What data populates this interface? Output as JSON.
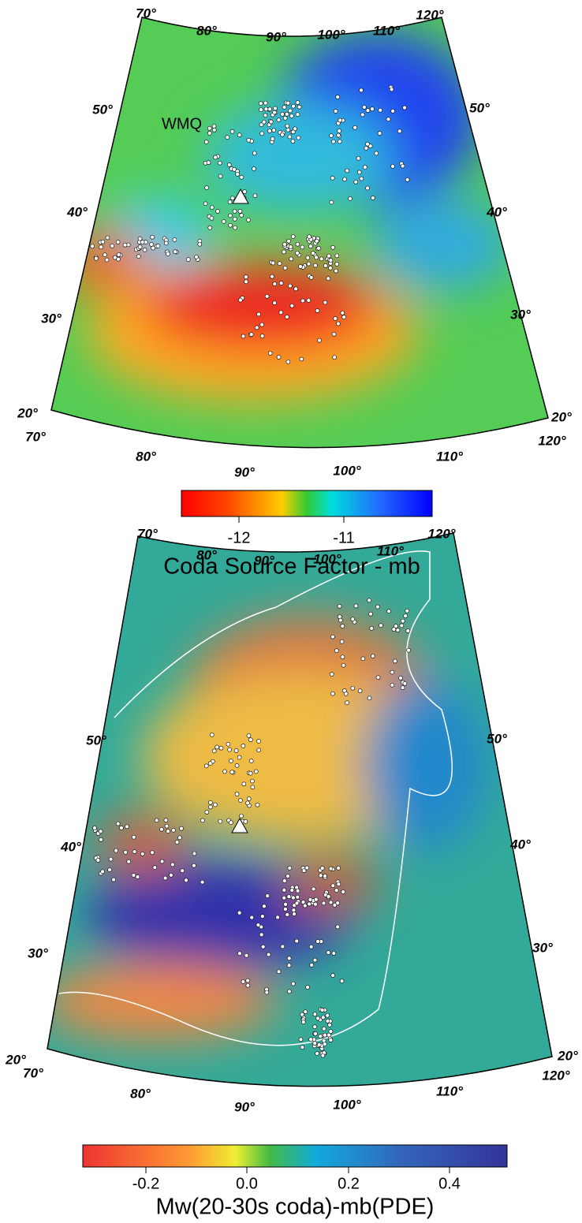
{
  "maps": [
    {
      "top_lon": [
        "70°",
        "80°",
        "90°",
        "100°",
        "110°",
        "120°"
      ],
      "bottom_lon": [
        "70°",
        "80°",
        "90°",
        "100°",
        "110°",
        "120°"
      ],
      "left_lat": [
        "50°",
        "40°",
        "30°",
        "20°"
      ],
      "right_lat": [
        "50°",
        "40°",
        "30°",
        "20°"
      ],
      "station": "WMQ",
      "colorbar": {
        "ticks": [
          "-12",
          "-11"
        ],
        "title": "Coda Source Factor - mb"
      }
    },
    {
      "top_lon": [
        "70°",
        "80°",
        "90°",
        "100°",
        "110°",
        "120°"
      ],
      "bottom_lon": [
        "70°",
        "80°",
        "90°",
        "100°",
        "110°",
        "120°"
      ],
      "left_lat": [
        "50°",
        "40°",
        "30°",
        "20°"
      ],
      "right_lat": [
        "50°",
        "40°",
        "30°",
        "20°"
      ],
      "colorbar": {
        "ticks": [
          "-0.2",
          "0.0",
          "0.2",
          "0.4"
        ],
        "title": "Mw(20-30s coda)-mb(PDE)"
      }
    }
  ]
}
